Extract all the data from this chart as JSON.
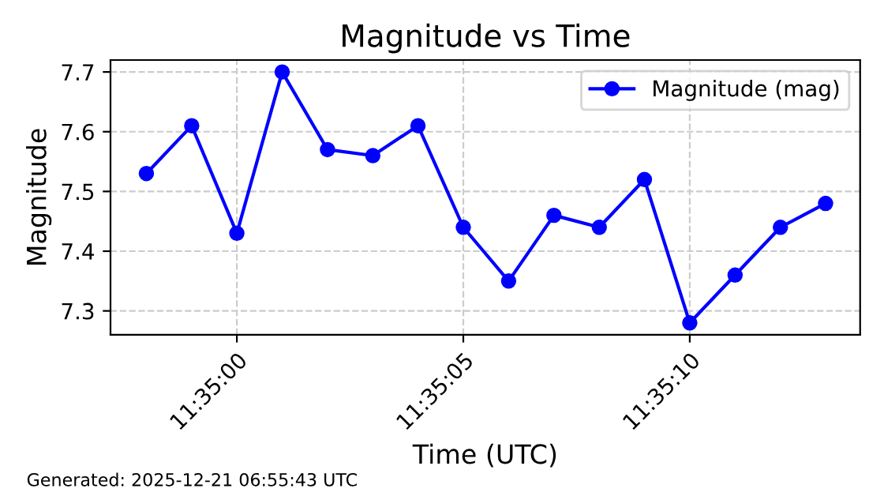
{
  "chart_data": {
    "type": "line",
    "title": "Magnitude vs Time",
    "xlabel": "Time (UTC)",
    "ylabel": "Magnitude",
    "x": [
      11.582778,
      11.583056,
      11.583333,
      11.583611,
      11.583889,
      11.584167,
      11.584444,
      11.584722,
      11.585,
      11.585278,
      11.585556,
      11.585833,
      11.586111,
      11.586389,
      11.586667,
      11.586944
    ],
    "series": [
      {
        "name": "Magnitude (mag)",
        "color": "#0000ff",
        "values": [
          7.53,
          7.61,
          7.43,
          7.7,
          7.57,
          7.56,
          7.61,
          7.44,
          7.35,
          7.46,
          7.44,
          7.52,
          7.28,
          7.36,
          7.44,
          7.48
        ]
      }
    ],
    "xlim": [
      11.582558,
      11.587156
    ],
    "xticks": [
      {
        "value": 11.583333,
        "label": "11:35:00"
      },
      {
        "value": 11.584722,
        "label": "11:35:05"
      },
      {
        "value": 11.586111,
        "label": "11:35:10"
      }
    ],
    "ylim": [
      7.26,
      7.72
    ],
    "yticks": [
      7.3,
      7.4,
      7.5,
      7.6,
      7.7
    ],
    "grid": true,
    "legend": "top right",
    "marker": "circle",
    "line_style": "solid",
    "annotations": [
      "Generated: 2025-12-21 06:55:43 UTC"
    ]
  }
}
